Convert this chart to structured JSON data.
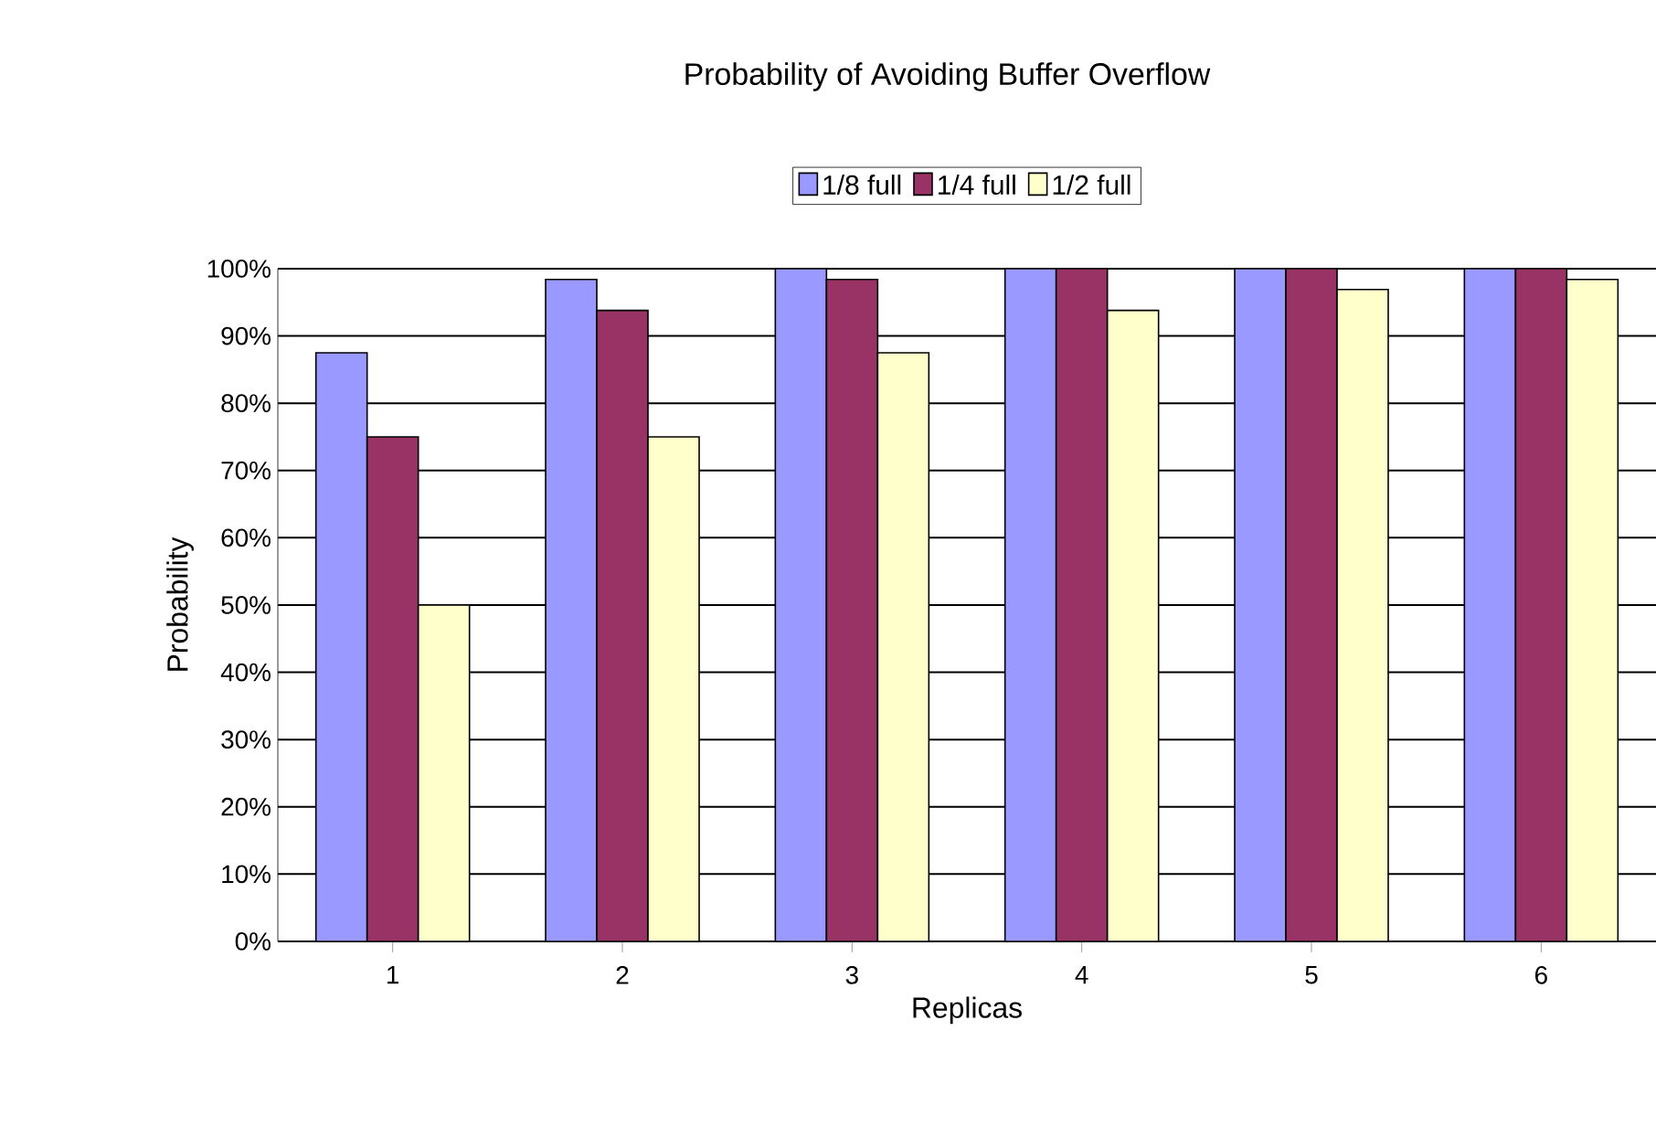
{
  "chart_data": {
    "type": "bar",
    "title": "Probability of Avoiding Buffer Overflow",
    "xlabel": "Replicas",
    "ylabel": "Probability",
    "categories": [
      "1",
      "2",
      "3",
      "4",
      "5",
      "6"
    ],
    "series": [
      {
        "name": "1/8 full",
        "color": "#9999ff",
        "values": [
          87.5,
          98.4,
          100,
          100,
          100,
          100
        ]
      },
      {
        "name": "1/4 full",
        "color": "#993366",
        "values": [
          75,
          93.8,
          98.4,
          100,
          100,
          100
        ]
      },
      {
        "name": "1/2 full",
        "color": "#ffffcc",
        "values": [
          50,
          75,
          87.5,
          93.8,
          96.9,
          98.4
        ]
      }
    ],
    "ylim": [
      0,
      100
    ],
    "yticks": [
      {
        "value": 0,
        "label": "0%"
      },
      {
        "value": 10,
        "label": "10%"
      },
      {
        "value": 20,
        "label": "20%"
      },
      {
        "value": 30,
        "label": "30%"
      },
      {
        "value": 40,
        "label": "40%"
      },
      {
        "value": 50,
        "label": "50%"
      },
      {
        "value": 60,
        "label": "60%"
      },
      {
        "value": 70,
        "label": "70%"
      },
      {
        "value": 80,
        "label": "80%"
      },
      {
        "value": 90,
        "label": "90%"
      },
      {
        "value": 100,
        "label": "100%"
      }
    ],
    "grid": "y",
    "legend": "top"
  }
}
